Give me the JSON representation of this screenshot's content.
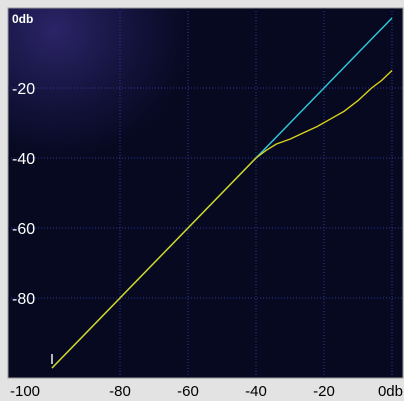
{
  "chart_data": {
    "type": "line",
    "title": "",
    "xlabel": "",
    "ylabel": "",
    "xlim": [
      -100,
      0
    ],
    "ylim": [
      -100,
      0
    ],
    "grid": true,
    "x_ticks": [
      -100,
      -80,
      -60,
      -40,
      -20,
      0
    ],
    "x_tick_labels": [
      "-100",
      "-80",
      "-60",
      "-40",
      "-20",
      "0db"
    ],
    "y_ticks": [
      0,
      -20,
      -40,
      -60,
      -80
    ],
    "y_tick_labels": [
      "0db",
      "-20",
      "-40",
      "-60",
      "-80"
    ],
    "series": [
      {
        "color": "#2ecde0",
        "x": [
          -100,
          0
        ],
        "y": [
          -100,
          0
        ]
      },
      {
        "color": "#d9d21c",
        "x": [
          -100,
          -80,
          -60,
          -45,
          -42,
          -40,
          -37,
          -34,
          -30,
          -26,
          -22,
          -18,
          -14,
          -10,
          -6,
          -3,
          0
        ],
        "y": [
          -100,
          -80,
          -60,
          -45,
          -42,
          -40,
          -37.8,
          -36,
          -34.6,
          -32.8,
          -31,
          -28.8,
          -26.6,
          -23.6,
          -20,
          -17.8,
          -15
        ]
      }
    ]
  },
  "colors": {
    "plot_background": "#060920",
    "grid": "#2b3b8f",
    "frame": "#b6b6b6",
    "tick_label": "#ffffff"
  }
}
